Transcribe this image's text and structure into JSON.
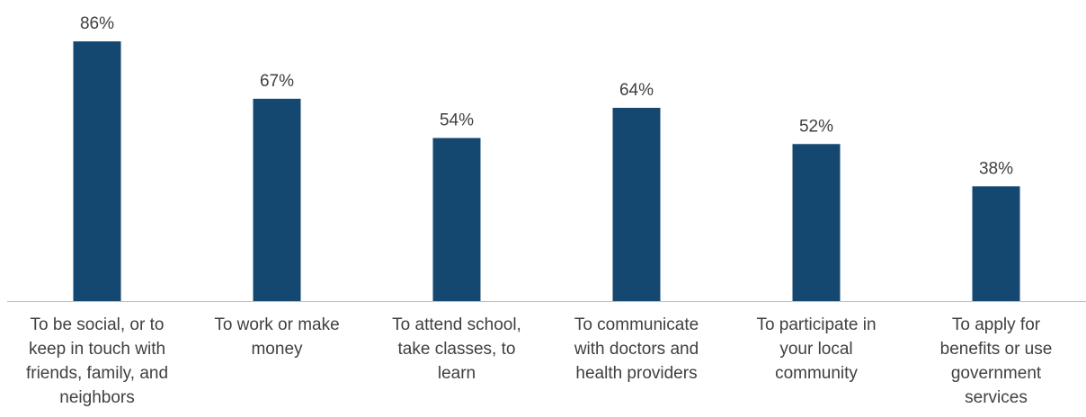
{
  "chart_data": {
    "type": "bar",
    "categories": [
      [
        "To be social, or to",
        "keep in touch with",
        "friends, family, and",
        "neighbors"
      ],
      [
        "To work or make",
        "money"
      ],
      [
        "To attend school,",
        "take classes, to",
        "learn"
      ],
      [
        "To communicate",
        "with doctors and",
        "health providers"
      ],
      [
        "To participate in",
        "your local",
        "community"
      ],
      [
        "To apply for",
        "benefits or use",
        "government",
        "services"
      ]
    ],
    "values": [
      86,
      67,
      54,
      64,
      52,
      38
    ],
    "value_labels": [
      "86%",
      "67%",
      "54%",
      "64%",
      "52%",
      "38%"
    ],
    "title": "",
    "xlabel": "",
    "ylabel": "",
    "ylim": [
      0,
      100
    ],
    "grid": false,
    "legend": "none",
    "bar_color": "#144870",
    "axis_color": "#bfbfbf",
    "text_color": "#404040"
  }
}
